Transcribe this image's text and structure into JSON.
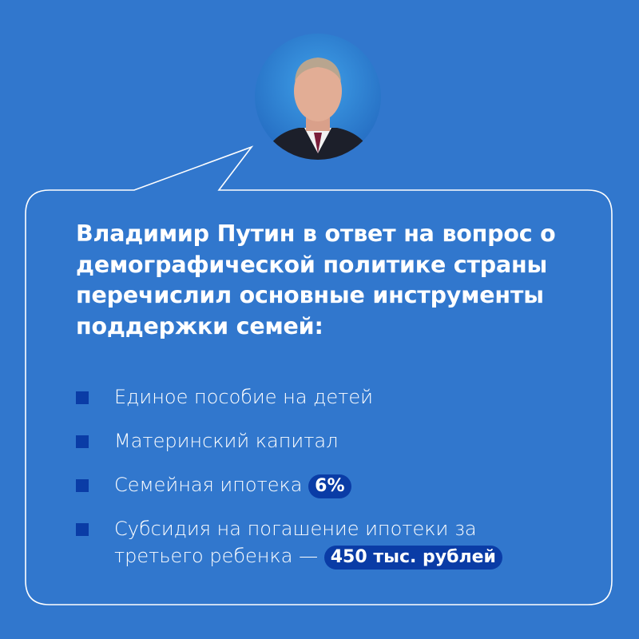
{
  "colors": {
    "background": "#3177cd",
    "accent": "#0a3ca6",
    "outline": "#ffffff"
  },
  "avatar": {
    "icon": "portrait-photo"
  },
  "headline": "Владимир Путин в ответ на вопрос о демографической политике страны перечислил основные инструменты поддержки семей:",
  "items": [
    {
      "text": "Единое пособие на детей"
    },
    {
      "text": "Материнский капитал"
    },
    {
      "text": "Семейная ипотека",
      "badge": "6%"
    },
    {
      "text": "Субсидия на погашение ипотеки за третьего ребенка —",
      "badge": "450 тыс. рублей"
    }
  ]
}
